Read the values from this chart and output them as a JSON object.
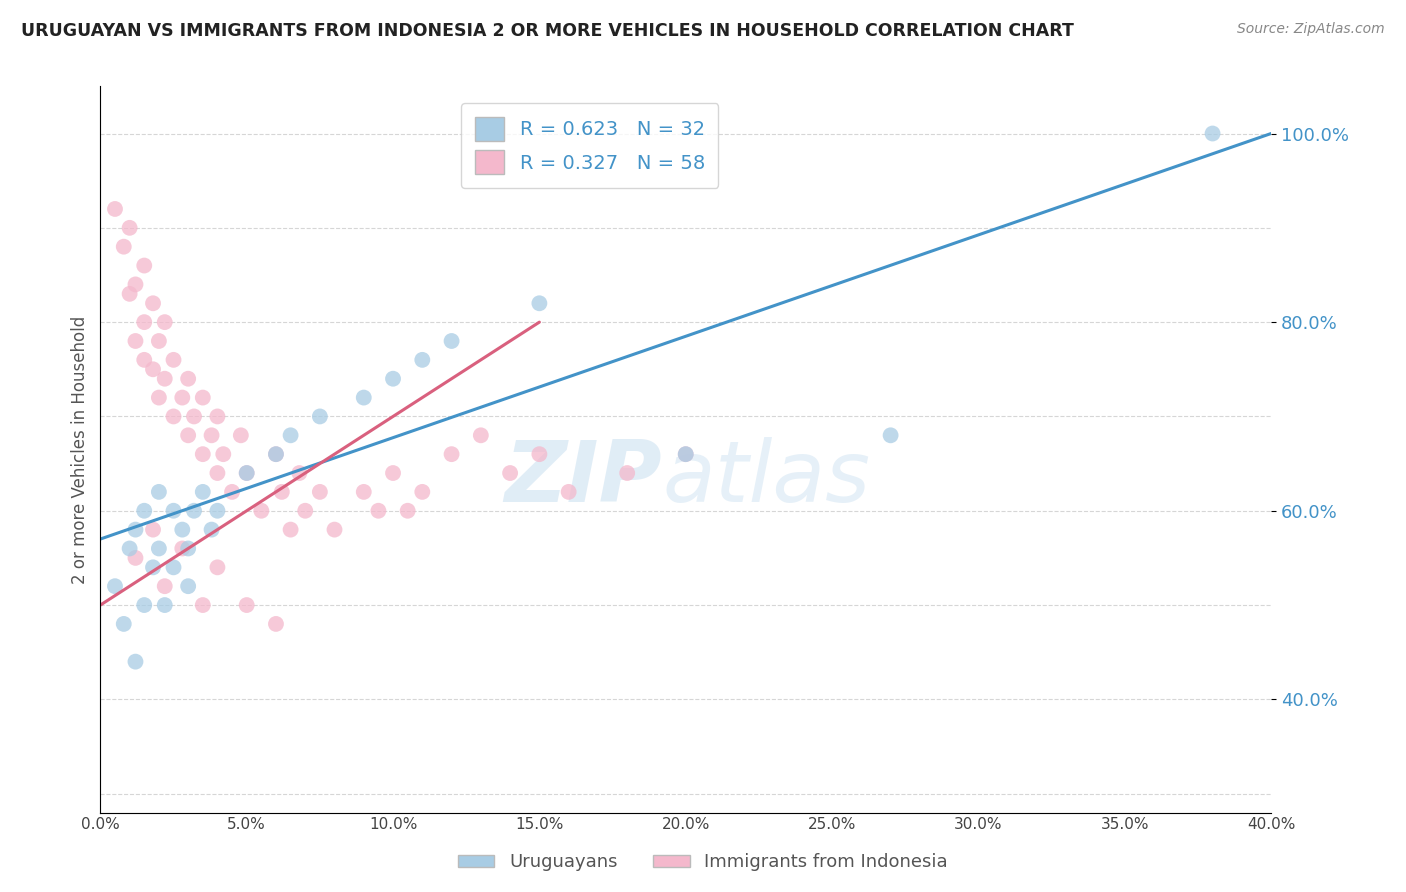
{
  "title": "URUGUAYAN VS IMMIGRANTS FROM INDONESIA 2 OR MORE VEHICLES IN HOUSEHOLD CORRELATION CHART",
  "source": "Source: ZipAtlas.com",
  "ylabel": "2 or more Vehicles in Household",
  "xlim": [
    0.0,
    0.4
  ],
  "ylim": [
    0.28,
    1.05
  ],
  "xticks": [
    0.0,
    0.05,
    0.1,
    0.15,
    0.2,
    0.25,
    0.3,
    0.35,
    0.4
  ],
  "yticks_right": [
    0.4,
    0.6,
    0.8,
    1.0
  ],
  "legend_r_blue": "R = 0.623",
  "legend_n_blue": "N = 32",
  "legend_r_pink": "R = 0.327",
  "legend_n_pink": "N = 58",
  "blue_color": "#a8cce4",
  "pink_color": "#f4b8cc",
  "blue_line_color": "#4393c8",
  "pink_line_color": "#d9607e",
  "watermark_zip": "ZIP",
  "watermark_atlas": "atlas",
  "uruguayan_x": [
    0.005,
    0.008,
    0.01,
    0.012,
    0.012,
    0.015,
    0.015,
    0.018,
    0.02,
    0.02,
    0.022,
    0.025,
    0.025,
    0.028,
    0.03,
    0.03,
    0.032,
    0.035,
    0.038,
    0.04,
    0.05,
    0.06,
    0.065,
    0.075,
    0.09,
    0.1,
    0.11,
    0.12,
    0.15,
    0.2,
    0.27,
    0.38
  ],
  "uruguayan_y": [
    0.52,
    0.48,
    0.56,
    0.44,
    0.58,
    0.5,
    0.6,
    0.54,
    0.56,
    0.62,
    0.5,
    0.54,
    0.6,
    0.58,
    0.52,
    0.56,
    0.6,
    0.62,
    0.58,
    0.6,
    0.64,
    0.66,
    0.68,
    0.7,
    0.72,
    0.74,
    0.76,
    0.78,
    0.82,
    0.66,
    0.68,
    1.0
  ],
  "indonesia_x": [
    0.005,
    0.008,
    0.01,
    0.01,
    0.012,
    0.012,
    0.015,
    0.015,
    0.015,
    0.018,
    0.018,
    0.02,
    0.02,
    0.022,
    0.022,
    0.025,
    0.025,
    0.028,
    0.03,
    0.03,
    0.032,
    0.035,
    0.035,
    0.038,
    0.04,
    0.04,
    0.042,
    0.045,
    0.048,
    0.05,
    0.055,
    0.06,
    0.062,
    0.065,
    0.068,
    0.07,
    0.075,
    0.08,
    0.09,
    0.095,
    0.1,
    0.105,
    0.11,
    0.12,
    0.13,
    0.14,
    0.15,
    0.16,
    0.18,
    0.2,
    0.012,
    0.018,
    0.022,
    0.028,
    0.035,
    0.04,
    0.05,
    0.06
  ],
  "indonesia_y": [
    0.92,
    0.88,
    0.83,
    0.9,
    0.78,
    0.84,
    0.8,
    0.86,
    0.76,
    0.75,
    0.82,
    0.72,
    0.78,
    0.74,
    0.8,
    0.7,
    0.76,
    0.72,
    0.68,
    0.74,
    0.7,
    0.66,
    0.72,
    0.68,
    0.64,
    0.7,
    0.66,
    0.62,
    0.68,
    0.64,
    0.6,
    0.66,
    0.62,
    0.58,
    0.64,
    0.6,
    0.62,
    0.58,
    0.62,
    0.6,
    0.64,
    0.6,
    0.62,
    0.66,
    0.68,
    0.64,
    0.66,
    0.62,
    0.64,
    0.66,
    0.55,
    0.58,
    0.52,
    0.56,
    0.5,
    0.54,
    0.5,
    0.48
  ],
  "blue_line_x": [
    0.0,
    0.4
  ],
  "blue_line_y": [
    0.57,
    1.0
  ],
  "pink_line_x": [
    0.0,
    0.15
  ],
  "pink_line_y": [
    0.5,
    0.8
  ]
}
